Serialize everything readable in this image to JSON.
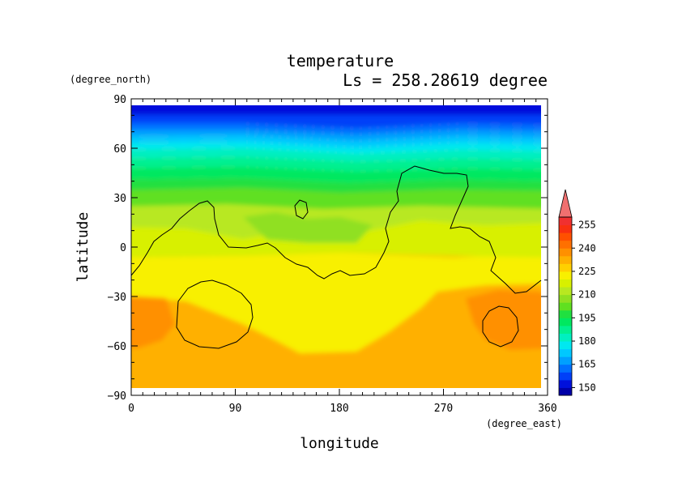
{
  "chart_data": {
    "type": "heatmap",
    "title": "temperature",
    "subtitle": "Ls = 258.28619 degree",
    "xlabel": "longitude",
    "ylabel": "latitude",
    "xunits": "(degree_east)",
    "yunits": "(degree_north)",
    "xlim": [
      0,
      360
    ],
    "ylim": [
      -90,
      90
    ],
    "x_ticks": [
      "0",
      "90",
      "180",
      "270",
      "360"
    ],
    "y_ticks": [
      "90",
      "60",
      "30",
      "0",
      "−30",
      "−60",
      "−90"
    ],
    "x_tick_values": [
      0,
      90,
      180,
      270,
      360
    ],
    "y_tick_values": [
      90,
      60,
      30,
      0,
      -30,
      -60,
      -90
    ],
    "data_lat_range": [
      -87,
      85
    ],
    "colorbar": {
      "levels": [
        145,
        150,
        155,
        160,
        165,
        170,
        175,
        180,
        185,
        190,
        195,
        200,
        205,
        210,
        215,
        220,
        225,
        230,
        235,
        240,
        245,
        250,
        255,
        260
      ],
      "tick_labels": [
        "255",
        "240",
        "225",
        "210",
        "195",
        "180",
        "165",
        "150"
      ],
      "tick_values": [
        255,
        240,
        225,
        210,
        195,
        180,
        165,
        150
      ],
      "colors": [
        "#0000a8",
        "#0010dc",
        "#0040f8",
        "#0070ff",
        "#00a0ff",
        "#00c8ff",
        "#00e8f0",
        "#00f0c0",
        "#00f090",
        "#00e860",
        "#20e040",
        "#60e020",
        "#90e020",
        "#b8e820",
        "#d8f000",
        "#f8f000",
        "#ffd000",
        "#ffb000",
        "#ff9000",
        "#ff7000",
        "#ff5000",
        "#f83010",
        "#f03030"
      ],
      "extend_max_color": "#f07070"
    },
    "contour_color": "#000000"
  }
}
